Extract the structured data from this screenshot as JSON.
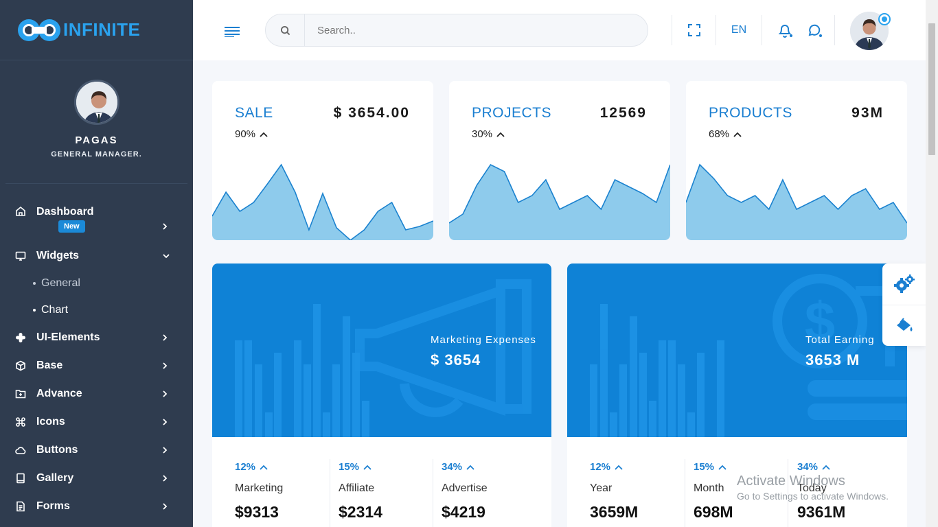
{
  "brand": {
    "name": "INFINITE",
    "accent": "#2aa2ee",
    "primary": "#0f82d6",
    "sidebar_bg": "#2f3c4f"
  },
  "profile": {
    "name": "PAGAS",
    "role": "GENERAL MANAGER."
  },
  "sidebar": {
    "items": [
      {
        "label": "Dashboard",
        "icon": "home-icon",
        "badge": "New"
      },
      {
        "label": "Widgets",
        "icon": "monitor-icon",
        "expanded": true,
        "children": [
          {
            "label": "General"
          },
          {
            "label": "Chart",
            "active": true
          }
        ]
      },
      {
        "label": "UI-Elements",
        "icon": "puzzle-icon"
      },
      {
        "label": "Base",
        "icon": "box-icon"
      },
      {
        "label": "Advance",
        "icon": "folder-plus-icon"
      },
      {
        "label": "Icons",
        "icon": "command-icon"
      },
      {
        "label": "Buttons",
        "icon": "cloud-icon"
      },
      {
        "label": "Gallery",
        "icon": "book-icon"
      },
      {
        "label": "Forms",
        "icon": "file-text-icon"
      }
    ]
  },
  "header": {
    "search_placeholder": "Search..",
    "language": "EN"
  },
  "stats": [
    {
      "title": "SALE",
      "value": "$ 3654.00",
      "change": "90%",
      "trend": "up"
    },
    {
      "title": "PROJECTS",
      "value": "12569",
      "change": "30%",
      "trend": "up"
    },
    {
      "title": "PRODUCTS",
      "value": "93M",
      "change": "68%",
      "trend": "up"
    }
  ],
  "chart_data": [
    {
      "type": "area",
      "series": [
        {
          "values": [
            35,
            70,
            42,
            55,
            82,
            110,
            70,
            15,
            68,
            18,
            0,
            15,
            42,
            55,
            15,
            20,
            28
          ]
        }
      ]
    },
    {
      "type": "area",
      "series": [
        {
          "values": [
            25,
            38,
            80,
            110,
            100,
            55,
            65,
            88,
            45,
            55,
            65,
            45,
            88,
            78,
            68,
            55,
            110
          ]
        }
      ]
    },
    {
      "type": "area",
      "series": [
        {
          "values": [
            55,
            110,
            90,
            65,
            55,
            65,
            45,
            88,
            45,
            55,
            65,
            45,
            65,
            75,
            45,
            55,
            25
          ]
        }
      ]
    }
  ],
  "marketing_card": {
    "label": "Marketing Expenses",
    "value": "$ 3654",
    "items": [
      {
        "change": "12%",
        "label": "Marketing",
        "value": "$9313"
      },
      {
        "change": "15%",
        "label": "Affiliate",
        "value": "$2314"
      },
      {
        "change": "34%",
        "label": "Advertise",
        "value": "$4219"
      }
    ]
  },
  "earning_card": {
    "label": "Total Earning",
    "value": "3653 M",
    "items": [
      {
        "change": "12%",
        "label": "Year",
        "value": "3659M"
      },
      {
        "change": "15%",
        "label": "Month",
        "value": "698M"
      },
      {
        "change": "34%",
        "label": "Today",
        "value": "9361M"
      }
    ]
  },
  "watermark": {
    "line1": "Activate Windows",
    "line2": "Go to Settings to activate Windows."
  }
}
